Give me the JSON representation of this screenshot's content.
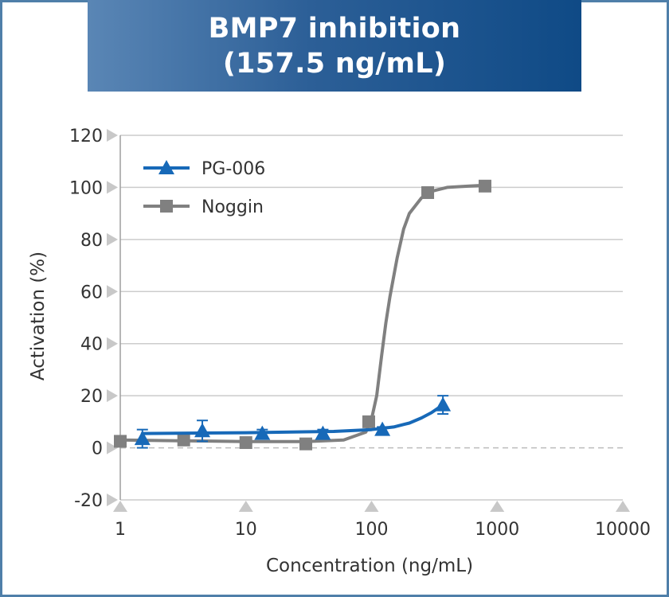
{
  "chart_data": {
    "type": "line",
    "title_lines": [
      "BMP7 inhibition",
      "(157.5 ng/mL)"
    ],
    "xlabel": "Concentration (ng/mL)",
    "ylabel": "Activation (%)",
    "x_scale": "log",
    "xlim": [
      1,
      10000
    ],
    "ylim": [
      -20,
      120
    ],
    "x_ticks": [
      1,
      10,
      100,
      1000,
      10000
    ],
    "x_tick_labels": [
      "1",
      "10",
      "100",
      "1000",
      "10000"
    ],
    "y_ticks": [
      -20,
      0,
      20,
      40,
      60,
      80,
      100,
      120
    ],
    "y_tick_labels": [
      "-20",
      "0",
      "20",
      "40",
      "60",
      "80",
      "100",
      "120"
    ],
    "grid": "horizontal",
    "zero_line": "dashed",
    "legend_position": "top-left",
    "series": [
      {
        "name": "PG-006",
        "color": "#1769b8",
        "marker": "triangle",
        "x": [
          1.5,
          4.5,
          13.5,
          41,
          122,
          370
        ],
        "y": [
          3.5,
          6.5,
          5.5,
          5.5,
          7,
          16.5
        ],
        "error": [
          3.5,
          4,
          1.5,
          1.5,
          1,
          3.5
        ],
        "fit_x": [
          1.5,
          10,
          50,
          100,
          150,
          200,
          250,
          300,
          370
        ],
        "fit_y": [
          5.5,
          5.8,
          6.3,
          7,
          8,
          9.5,
          11.5,
          13.5,
          16.5
        ]
      },
      {
        "name": "Noggin",
        "color": "#808080",
        "marker": "square",
        "x": [
          1,
          3.2,
          10,
          30,
          95,
          280,
          800
        ],
        "y": [
          2.5,
          3,
          2,
          1.5,
          10,
          98,
          100.5
        ],
        "error": [
          0,
          2,
          0,
          0,
          2,
          0,
          0
        ],
        "fit_x": [
          1,
          3,
          10,
          30,
          60,
          90,
          100,
          110,
          120,
          130,
          140,
          160,
          180,
          200,
          250,
          300,
          400,
          600,
          800
        ],
        "fit_y": [
          3,
          2.7,
          2.4,
          2.4,
          3,
          6,
          11,
          20,
          35,
          48,
          58,
          73,
          84,
          90,
          96,
          98.5,
          100,
          100.5,
          100.8
        ]
      }
    ]
  }
}
